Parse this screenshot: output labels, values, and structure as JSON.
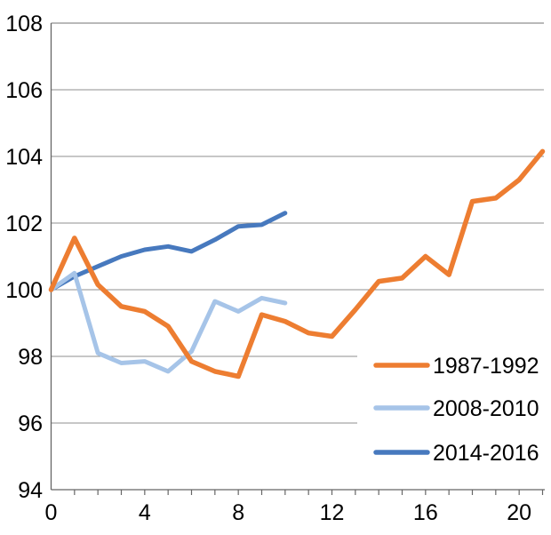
{
  "chart_data": {
    "type": "line",
    "title": "",
    "xlabel": "",
    "ylabel": "",
    "xlim": [
      0,
      21
    ],
    "ylim": [
      94,
      108
    ],
    "yticks": [
      94,
      96,
      98,
      100,
      102,
      104,
      106,
      108
    ],
    "ytick_labels": [
      "94",
      "96",
      "98",
      "100",
      "102",
      "104",
      "106",
      "108"
    ],
    "xticks_minor_every": 1,
    "xticks_labeled": [
      0,
      4,
      8,
      12,
      16,
      20
    ],
    "xtick_labels": [
      "0",
      "4",
      "8",
      "12",
      "16",
      "20"
    ],
    "grid": true,
    "legend_position": "lower-right",
    "series": [
      {
        "name": "1987-1992",
        "color": "#ED7D31",
        "x": [
          0,
          1,
          2,
          3,
          4,
          5,
          6,
          7,
          8,
          9,
          10,
          11,
          12,
          13,
          14,
          15,
          16,
          17,
          18,
          19,
          20,
          21
        ],
        "values": [
          100,
          101.55,
          100.15,
          99.5,
          99.35,
          98.9,
          97.85,
          97.55,
          97.4,
          99.25,
          99.05,
          98.7,
          98.6,
          99.4,
          100.25,
          100.35,
          101.0,
          100.45,
          102.65,
          102.75,
          103.3,
          104.15
        ]
      },
      {
        "name": "2008-2010",
        "color": "#A6C4E8",
        "x": [
          0,
          1,
          2,
          3,
          4,
          5,
          6,
          7,
          8,
          9,
          10
        ],
        "values": [
          100,
          100.5,
          98.1,
          97.8,
          97.85,
          97.55,
          98.15,
          99.65,
          99.35,
          99.75,
          99.6
        ]
      },
      {
        "name": "2014-2016",
        "color": "#4779BE",
        "x": [
          0,
          1,
          2,
          3,
          4,
          5,
          6,
          7,
          8,
          9,
          10
        ],
        "values": [
          100,
          100.4,
          100.7,
          101.0,
          101.2,
          101.3,
          101.15,
          101.5,
          101.9,
          101.95,
          102.3
        ]
      }
    ]
  },
  "legend": {
    "items": [
      {
        "label": "1987-1992",
        "color": "#ED7D31"
      },
      {
        "label": "2008-2010",
        "color": "#A6C4E8"
      },
      {
        "label": "2014-2016",
        "color": "#4779BE"
      }
    ]
  },
  "colors": {
    "background": "#ffffff",
    "gridline": "#8f8f8f",
    "axis": "#666666",
    "text": "#000000"
  }
}
